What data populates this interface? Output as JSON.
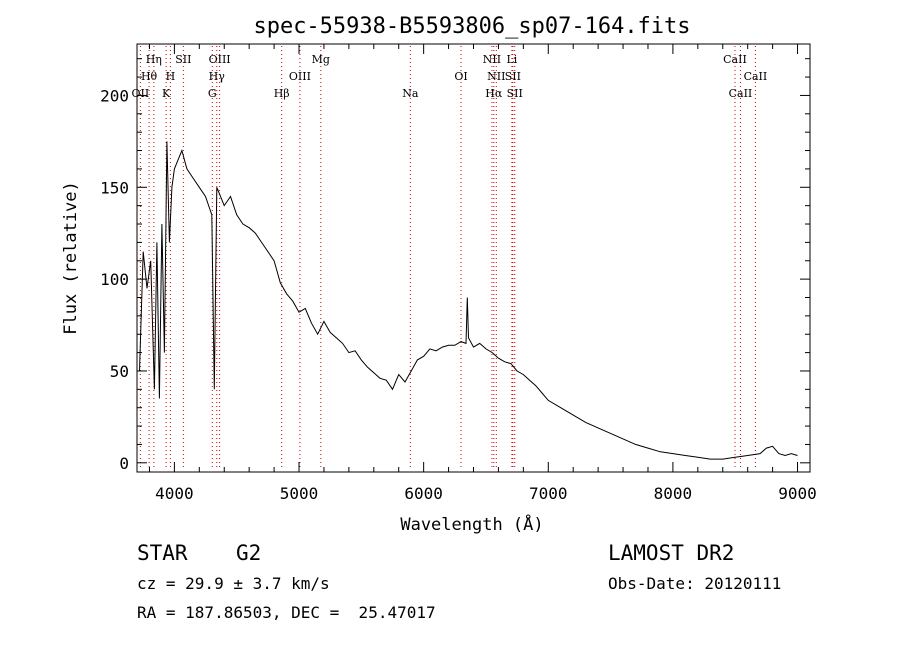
{
  "chart_data": {
    "type": "line",
    "title": "spec-55938-B5593806_sp07-164.fits",
    "xlabel": "Wavelength (Å)",
    "ylabel": "Flux (relative)",
    "xlim": [
      3700,
      9100
    ],
    "ylim": [
      -5,
      228
    ],
    "xticks": [
      4000,
      5000,
      6000,
      7000,
      8000,
      9000
    ],
    "yticks": [
      0,
      50,
      100,
      150,
      200
    ],
    "grid": false,
    "series": [
      {
        "x": [
          3720,
          3750,
          3780,
          3810,
          3840,
          3860,
          3880,
          3900,
          3920,
          3940,
          3960,
          3980,
          4000,
          4030,
          4060,
          4100,
          4150,
          4200,
          4250,
          4300,
          4320,
          4340,
          4400,
          4450,
          4500,
          4550,
          4600,
          4650,
          4700,
          4750,
          4800,
          4850,
          4900,
          4950,
          5000,
          5050,
          5100,
          5150,
          5200,
          5250,
          5300,
          5350,
          5400,
          5450,
          5500,
          5550,
          5600,
          5650,
          5700,
          5750,
          5800,
          5850,
          5900,
          5950,
          6000,
          6050,
          6100,
          6150,
          6200,
          6250,
          6300,
          6340,
          6350,
          6360,
          6400,
          6450,
          6500,
          6550,
          6600,
          6650,
          6700,
          6750,
          6800,
          6850,
          6900,
          6950,
          7000,
          7100,
          7200,
          7300,
          7400,
          7500,
          7600,
          7700,
          7800,
          7900,
          8000,
          8100,
          8200,
          8300,
          8400,
          8500,
          8600,
          8700,
          8750,
          8800,
          8850,
          8900,
          8950,
          9000
        ],
        "y": [
          50,
          115,
          95,
          110,
          40,
          120,
          35,
          130,
          60,
          175,
          120,
          150,
          160,
          165,
          170,
          160,
          155,
          150,
          145,
          135,
          40,
          150,
          140,
          145,
          135,
          130,
          128,
          125,
          120,
          115,
          110,
          98,
          92,
          88,
          82,
          84,
          76,
          70,
          77,
          71,
          68,
          65,
          60,
          61,
          56,
          52,
          49,
          46,
          45,
          40,
          48,
          44,
          50,
          56,
          58,
          62,
          61,
          63,
          64,
          64,
          66,
          65,
          90,
          68,
          63,
          65,
          62,
          60,
          57,
          55,
          54,
          50,
          48,
          45,
          42,
          38,
          34,
          30,
          26,
          22,
          19,
          16,
          13,
          10,
          8,
          6,
          5,
          4,
          3,
          2,
          2,
          3,
          4,
          5,
          8,
          9,
          5,
          4,
          5,
          4
        ]
      }
    ],
    "line_markers": [
      {
        "label": "Hη",
        "x": 3835,
        "row": 0,
        "color": "#cc0000"
      },
      {
        "label": "Hθ",
        "x": 3797,
        "row": 1,
        "color": "#cc0000"
      },
      {
        "label": "OII",
        "x": 3727,
        "row": 2,
        "color": "#cc0000"
      },
      {
        "label": "H",
        "x": 3968,
        "row": 1,
        "color": "#cc0000"
      },
      {
        "label": "K",
        "x": 3934,
        "row": 2,
        "color": "#cc0000"
      },
      {
        "label": "SII",
        "x": 4072,
        "row": 0,
        "color": "#cc0000"
      },
      {
        "label": "OIII",
        "x": 4363,
        "row": 0,
        "color": "#cc0000"
      },
      {
        "label": "Hγ",
        "x": 4340,
        "row": 1,
        "color": "#cc0000"
      },
      {
        "label": "G",
        "x": 4304,
        "row": 2,
        "color": "#cc0000"
      },
      {
        "label": "Hβ",
        "x": 4861,
        "row": 2,
        "color": "#cc0000"
      },
      {
        "label": "OIII",
        "x": 5007,
        "row": 1,
        "color": "#cc0000"
      },
      {
        "label": "Mg",
        "x": 5175,
        "row": 0,
        "color": "#cc0000"
      },
      {
        "label": "Na",
        "x": 5893,
        "row": 2,
        "color": "#cc0000"
      },
      {
        "label": "OI",
        "x": 6300,
        "row": 1,
        "color": "#cc0000"
      },
      {
        "label": "NII",
        "x": 6548,
        "row": 0,
        "color": "#cc0000"
      },
      {
        "label": "Li",
        "x": 6708,
        "row": 0,
        "color": "#cc0000"
      },
      {
        "label": "NII",
        "x": 6583,
        "row": 1,
        "color": "#cc0000"
      },
      {
        "label": "SII",
        "x": 6716,
        "row": 1,
        "color": "#cc0000"
      },
      {
        "label": "Hα",
        "x": 6563,
        "row": 2,
        "color": "#cc0000"
      },
      {
        "label": "SII",
        "x": 6731,
        "row": 2,
        "color": "#cc0000"
      },
      {
        "label": "CaII",
        "x": 8498,
        "row": 0,
        "color": "#cc0000"
      },
      {
        "label": "CaII",
        "x": 8662,
        "row": 1,
        "color": "#cc0000"
      },
      {
        "label": "CaII",
        "x": 8542,
        "row": 2,
        "color": "#cc0000"
      }
    ],
    "line_color": "#000000",
    "marker_line_color": "#cc0000"
  },
  "info": {
    "object_class": "STAR",
    "subclass": "G2",
    "survey": "LAMOST DR2",
    "cz": "cz = 29.9 ± 3.7 km/s",
    "obs_date": "Obs-Date: 20120111",
    "coords": "RA = 187.86503, DEC =  25.47017"
  }
}
